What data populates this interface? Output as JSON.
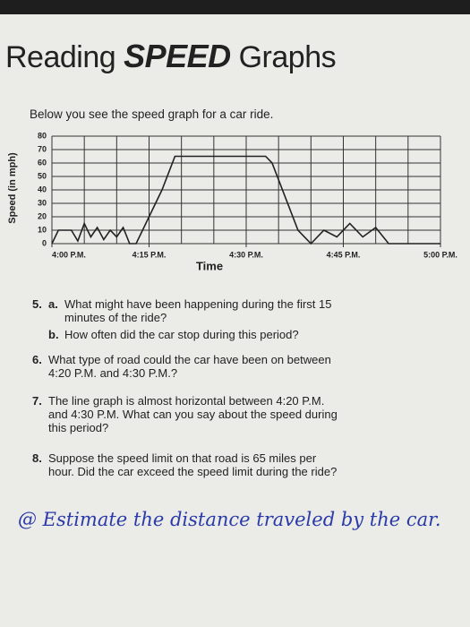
{
  "header": {
    "title_start": "Reading",
    "title_emph": "SPEED",
    "title_end": "Graphs",
    "intro": "Below you see the speed graph for a car ride."
  },
  "chart_data": {
    "type": "line",
    "y_label": "Speed (in mph)",
    "x_label": "Time",
    "color": "#222222",
    "grid": true,
    "x": [
      0,
      1,
      3,
      4,
      5,
      6,
      7,
      8,
      9,
      10,
      11,
      12,
      13,
      14,
      17,
      19,
      33,
      34,
      38,
      40,
      42,
      44,
      46,
      48,
      50,
      52,
      60
    ],
    "values": [
      0,
      10,
      10,
      2,
      15,
      5,
      12,
      3,
      10,
      5,
      12,
      0,
      0,
      10,
      40,
      65,
      65,
      60,
      10,
      0,
      10,
      5,
      15,
      5,
      12,
      0,
      0
    ],
    "xlim": [
      0,
      60
    ],
    "xticks": [
      {
        "value": 0,
        "label": "4:00 P.M."
      },
      {
        "value": 15,
        "label": "4:15 P.M."
      },
      {
        "value": 30,
        "label": "4:30 P.M."
      },
      {
        "value": 45,
        "label": "4:45 P.M."
      },
      {
        "value": 60,
        "label": "5:00 P.M."
      }
    ],
    "ylim": [
      0,
      80
    ],
    "yticks": [
      0,
      10,
      20,
      30,
      40,
      50,
      60,
      70,
      80
    ]
  },
  "questions": [
    {
      "number": "5.",
      "part": "a.",
      "text": "What might have been happening during the first 15 minutes of the ride?"
    },
    {
      "part": "b.",
      "text": "How often did the car stop during this period?"
    },
    {
      "number": "6.",
      "text": "What type of road could the car have been on between 4:20 P.M. and 4:30 P.M.?"
    },
    {
      "number": "7.",
      "text": "The line graph is almost horizontal between 4:20 P.M. and 4:30 P.M. What can you say about the speed during this period?"
    },
    {
      "number": "8.",
      "text": "Suppose the speed limit on that road is 65 miles per hour. Did the car exceed the speed limit during the ride?"
    }
  ],
  "handwritten": "@ Estimate the distance traveled by the car."
}
